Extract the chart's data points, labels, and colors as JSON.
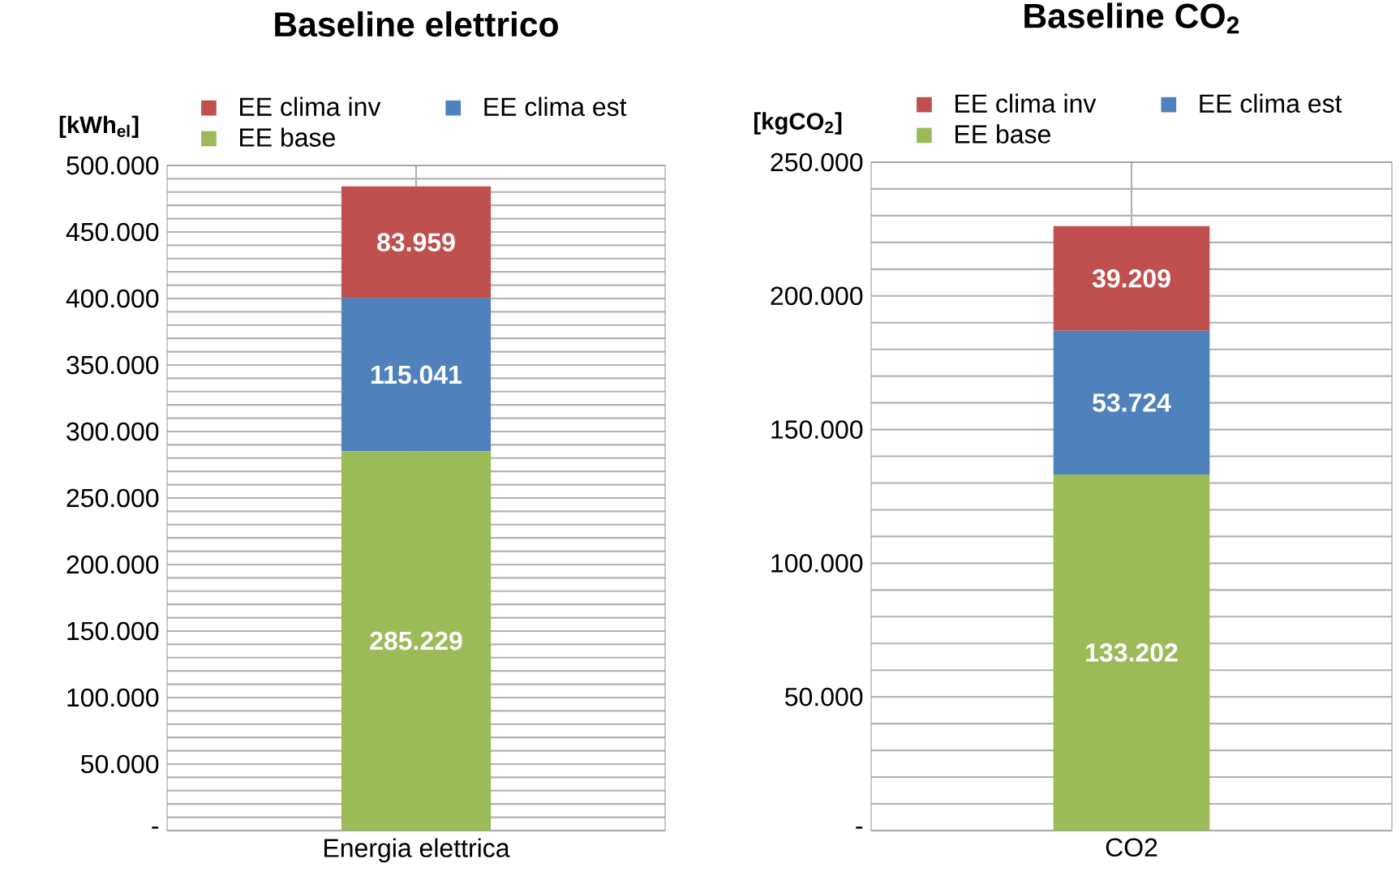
{
  "chart_data": [
    {
      "type": "bar",
      "title": "Baseline elettrico",
      "ylabel": "[kWh$_{el}$]",
      "categories": [
        "Energia elettrica"
      ],
      "stacked": true,
      "grid": true,
      "legend": "top",
      "ylim": [
        0,
        500000
      ],
      "yticks": [
        {
          "value": 0,
          "label": "-"
        },
        {
          "value": 50000,
          "label": "50.000"
        },
        {
          "value": 100000,
          "label": "100.000"
        },
        {
          "value": 150000,
          "label": "150.000"
        },
        {
          "value": 200000,
          "label": "200.000"
        },
        {
          "value": 250000,
          "label": "250.000"
        },
        {
          "value": 300000,
          "label": "300.000"
        },
        {
          "value": 350000,
          "label": "350.000"
        },
        {
          "value": 400000,
          "label": "400.000"
        },
        {
          "value": 450000,
          "label": "450.000"
        },
        {
          "value": 500000,
          "label": "500.000"
        }
      ],
      "series": [
        {
          "name": "EE base",
          "color": "#9bbb59",
          "values": [
            285229
          ],
          "value_labels": [
            "285.229"
          ]
        },
        {
          "name": "EE clima est",
          "color": "#4f81bd",
          "values": [
            115041
          ],
          "value_labels": [
            "115.041"
          ]
        },
        {
          "name": "EE clima inv",
          "color": "#c0504d",
          "values": [
            83959
          ],
          "value_labels": [
            "83.959"
          ]
        }
      ]
    },
    {
      "type": "bar",
      "title": "Baseline CO$_{2}$",
      "ylabel": "[kgCO$_{2}$]",
      "categories": [
        "CO2"
      ],
      "stacked": true,
      "grid": true,
      "legend": "top",
      "ylim": [
        0,
        250000
      ],
      "yticks": [
        {
          "value": 0,
          "label": "-"
        },
        {
          "value": 50000,
          "label": "50.000"
        },
        {
          "value": 100000,
          "label": "100.000"
        },
        {
          "value": 150000,
          "label": "150.000"
        },
        {
          "value": 200000,
          "label": "200.000"
        },
        {
          "value": 250000,
          "label": "250.000"
        }
      ],
      "series": [
        {
          "name": "EE base",
          "color": "#9bbb59",
          "values": [
            133202
          ],
          "value_labels": [
            "133.202"
          ]
        },
        {
          "name": "EE clima est",
          "color": "#4f81bd",
          "values": [
            53724
          ],
          "value_labels": [
            "53.724"
          ]
        },
        {
          "name": "EE clima inv",
          "color": "#c0504d",
          "values": [
            39209
          ],
          "value_labels": [
            "39.209"
          ]
        }
      ]
    }
  ]
}
